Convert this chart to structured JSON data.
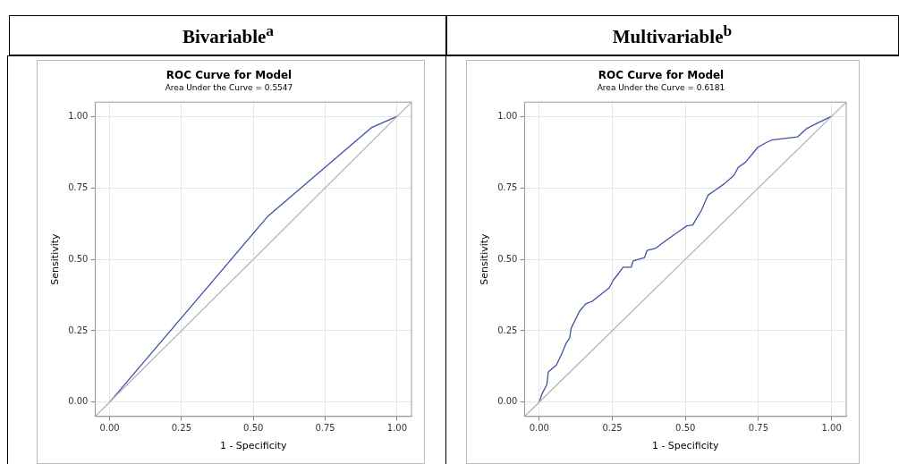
{
  "chart_data": [
    {
      "type": "line",
      "title": "ROC Curve for Model",
      "subtitle": "Area Under the Curve = 0.5547",
      "xlabel": "1 - Specificity",
      "ylabel": "Sensitivity",
      "annotations": [
        "Bivariable$^{a}$"
      ],
      "marker": "none",
      "grid": true,
      "legend": false,
      "xlim": [
        -0.05,
        1.05
      ],
      "ylim": [
        -0.05,
        1.05
      ],
      "xticks": [
        {
          "value": 0,
          "label": "0.00"
        },
        {
          "value": 0.25,
          "label": "0.25"
        },
        {
          "value": 0.5,
          "label": "0.50"
        },
        {
          "value": 0.75,
          "label": "0.75"
        },
        {
          "value": 1,
          "label": "1.00"
        }
      ],
      "yticks": [
        {
          "value": 0,
          "label": "0.00"
        },
        {
          "value": 0.25,
          "label": "0.25"
        },
        {
          "value": 0.5,
          "label": "0.50"
        },
        {
          "value": 0.75,
          "label": "0.75"
        },
        {
          "value": 1,
          "label": "1.00"
        }
      ],
      "series": [
        {
          "color": "#b4b4b4",
          "x": [
            -0.05,
            1.05
          ],
          "values": [
            -0.05,
            1.05
          ]
        },
        {
          "color": "#3f51a3",
          "x": [
            0,
            0.55,
            0.91,
            1
          ],
          "values": [
            0,
            0.65,
            0.96,
            1
          ]
        }
      ]
    },
    {
      "type": "line",
      "title": "ROC Curve for Model",
      "subtitle": "Area Under the Curve = 0.6181",
      "xlabel": "1 - Specificity",
      "ylabel": "Sensitivity",
      "annotations": [
        "Multivariable$^{b}$"
      ],
      "marker": "none",
      "grid": true,
      "legend": false,
      "xlim": [
        -0.05,
        1.05
      ],
      "ylim": [
        -0.05,
        1.05
      ],
      "xticks": [
        {
          "value": 0,
          "label": "0.00"
        },
        {
          "value": 0.25,
          "label": "0.25"
        },
        {
          "value": 0.5,
          "label": "0.50"
        },
        {
          "value": 0.75,
          "label": "0.75"
        },
        {
          "value": 1,
          "label": "1.00"
        }
      ],
      "yticks": [
        {
          "value": 0,
          "label": "0.00"
        },
        {
          "value": 0.25,
          "label": "0.25"
        },
        {
          "value": 0.5,
          "label": "0.50"
        },
        {
          "value": 0.75,
          "label": "0.75"
        },
        {
          "value": 1,
          "label": "1.00"
        }
      ],
      "series": [
        {
          "color": "#b4b4b4",
          "x": [
            -0.05,
            1.05
          ],
          "values": [
            -0.05,
            1.05
          ]
        },
        {
          "color": "#3f51a3",
          "x": [
            0,
            0.009,
            0.026,
            0.031,
            0.059,
            0.076,
            0.092,
            0.104,
            0.109,
            0.137,
            0.159,
            0.181,
            0.239,
            0.254,
            0.271,
            0.287,
            0.315,
            0.321,
            0.36,
            0.369,
            0.399,
            0.427,
            0.505,
            0.525,
            0.555,
            0.577,
            0.605,
            0.633,
            0.666,
            0.681,
            0.705,
            0.747,
            0.772,
            0.794,
            0.883,
            0.916,
            0.95,
            1
          ],
          "values": [
            0,
            0.028,
            0.061,
            0.106,
            0.13,
            0.167,
            0.206,
            0.224,
            0.258,
            0.317,
            0.344,
            0.353,
            0.4,
            0.428,
            0.45,
            0.472,
            0.472,
            0.494,
            0.506,
            0.531,
            0.539,
            0.561,
            0.617,
            0.62,
            0.672,
            0.724,
            0.744,
            0.764,
            0.794,
            0.822,
            0.839,
            0.891,
            0.906,
            0.917,
            0.928,
            0.958,
            0.976,
            1
          ]
        }
      ]
    }
  ]
}
